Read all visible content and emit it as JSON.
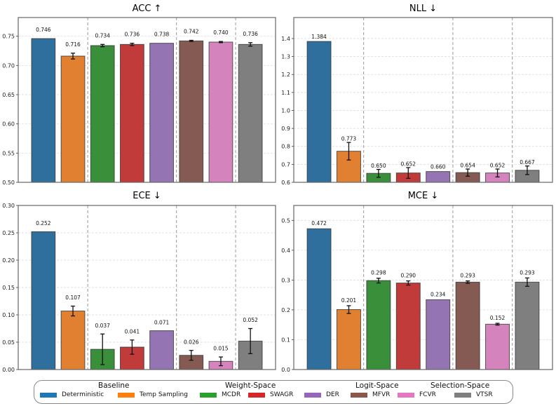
{
  "chart_data": [
    {
      "type": "bar",
      "title": "ACC ↑",
      "categories": [
        "Deterministic",
        "Temp Sampling",
        "MCDR",
        "SWAGR",
        "DER",
        "MFVR",
        "FCVR",
        "VTSR"
      ],
      "values": [
        0.746,
        0.716,
        0.734,
        0.736,
        0.738,
        0.742,
        0.74,
        0.736
      ],
      "errors": [
        0.0,
        0.005,
        0.002,
        0.002,
        0.0,
        0.001,
        0.001,
        0.003
      ],
      "value_labels": [
        "0.746",
        "0.716",
        "0.734",
        "0.736",
        "0.738",
        "0.742",
        "0.740",
        "0.736"
      ],
      "ylim": [
        0.5,
        0.782
      ],
      "yticks": [
        0.5,
        0.55,
        0.6,
        0.65,
        0.7,
        0.75
      ],
      "ytick_labels": [
        "0.50",
        "0.55",
        "0.60",
        "0.65",
        "0.70",
        "0.75"
      ],
      "label_offset": 0.012,
      "grid": true,
      "xlabel": "",
      "ylabel": ""
    },
    {
      "type": "bar",
      "title": "NLL ↓",
      "categories": [
        "Deterministic",
        "Temp Sampling",
        "MCDR",
        "SWAGR",
        "DER",
        "MFVR",
        "FCVR",
        "VTSR"
      ],
      "values": [
        1.384,
        0.773,
        0.65,
        0.652,
        0.66,
        0.654,
        0.652,
        0.667
      ],
      "errors": [
        0.0,
        0.049,
        0.022,
        0.03,
        0.0,
        0.02,
        0.022,
        0.024
      ],
      "value_labels": [
        "1.384",
        "0.773",
        "0.650",
        "0.652",
        "0.660",
        "0.654",
        "0.652",
        "0.667"
      ],
      "ylim": [
        0.6,
        1.517
      ],
      "yticks": [
        0.6,
        0.7,
        0.8,
        0.9,
        1.0,
        1.1,
        1.2,
        1.3,
        1.4
      ],
      "ytick_labels": [
        "0.6",
        "0.7",
        "0.8",
        "0.9",
        "1.0",
        "1.1",
        "1.2",
        "1.3",
        "1.4"
      ],
      "label_offset": 0.01,
      "grid": true,
      "xlabel": "",
      "ylabel": ""
    },
    {
      "type": "bar",
      "title": "ECE ↓",
      "categories": [
        "Deterministic",
        "Temp Sampling",
        "MCDR",
        "SWAGR",
        "DER",
        "MFVR",
        "FCVR",
        "VTSR"
      ],
      "values": [
        0.252,
        0.107,
        0.037,
        0.041,
        0.071,
        0.026,
        0.015,
        0.052
      ],
      "errors": [
        0.0,
        0.009,
        0.028,
        0.013,
        0.0,
        0.009,
        0.008,
        0.023
      ],
      "value_labels": [
        "0.252",
        "0.107",
        "0.037",
        "0.041",
        "0.071",
        "0.026",
        "0.015",
        "0.052"
      ],
      "ylim": [
        0.0,
        0.3
      ],
      "yticks": [
        0.0,
        0.05,
        0.1,
        0.15,
        0.2,
        0.25,
        0.3
      ],
      "ytick_labels": [
        "0.00",
        "0.05",
        "0.10",
        "0.15",
        "0.20",
        "0.25",
        "0.30"
      ],
      "label_offset": 0.012,
      "grid": true,
      "xlabel": "",
      "ylabel": ""
    },
    {
      "type": "bar",
      "title": "MCE ↓",
      "categories": [
        "Deterministic",
        "Temp Sampling",
        "MCDR",
        "SWAGR",
        "DER",
        "MFVR",
        "FCVR",
        "VTSR"
      ],
      "values": [
        0.472,
        0.201,
        0.298,
        0.29,
        0.234,
        0.293,
        0.152,
        0.293
      ],
      "errors": [
        0.0,
        0.013,
        0.008,
        0.007,
        0.0,
        0.004,
        0.003,
        0.014
      ],
      "value_labels": [
        "0.472",
        "0.201",
        "0.298",
        "0.290",
        "0.234",
        "0.293",
        "0.152",
        "0.293"
      ],
      "ylim": [
        0.0,
        0.55
      ],
      "yticks": [
        0.0,
        0.1,
        0.2,
        0.3,
        0.4,
        0.5
      ],
      "ytick_labels": [
        "0.0",
        "0.1",
        "0.2",
        "0.3",
        "0.4",
        "0.5"
      ],
      "label_offset": 0.012,
      "grid": true,
      "xlabel": "",
      "ylabel": ""
    }
  ],
  "colors": [
    "#2e6f9e",
    "#e08030",
    "#3a8f3a",
    "#c23b3b",
    "#9474b2",
    "#845a52",
    "#d583bd",
    "#7f7f7f"
  ],
  "group_separators_after_index": [
    1,
    4,
    6
  ],
  "legend": {
    "placement": "bottom-center",
    "groups": [
      {
        "title": "Baseline",
        "items": [
          "Deterministic",
          "Temp Sampling"
        ]
      },
      {
        "title": "Weight-Space",
        "items": [
          "MCDR",
          "SWAGR",
          "DER"
        ]
      },
      {
        "title": "Logit-Space",
        "items": [
          "MFVR",
          "FCVR"
        ]
      },
      {
        "title": "Selection-Space",
        "items": [
          "VTSR"
        ]
      }
    ],
    "swatch_colors": [
      "#1f77b4",
      "#ff7f0e",
      "#2ca02c",
      "#d62728",
      "#9467bd",
      "#8c564b",
      "#e377c2",
      "#7f7f7f"
    ]
  }
}
